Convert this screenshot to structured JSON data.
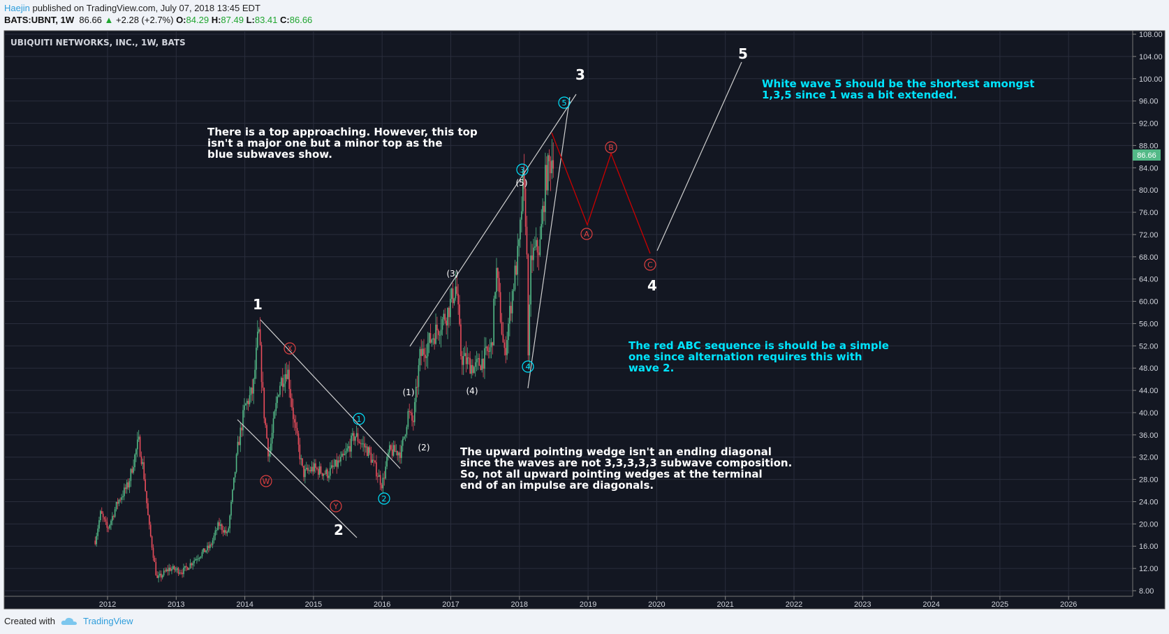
{
  "header": {
    "author": "Haejin",
    "published_text": " published on TradingView.com, July 07, 2018 13:45 EDT",
    "symbol": "BATS:UBNT, 1W",
    "last": "86.66",
    "change": "+2.28 (+2.7%)",
    "open_label": "O:",
    "open": "84.29",
    "high_label": "H:",
    "high": "87.49",
    "low_label": "L:",
    "low": "83.41",
    "close_label": "C:",
    "close": "86.66"
  },
  "chart_title": "UBIQUITI NETWORKS, INC., 1W, BATS",
  "price_badge": "86.66",
  "footer": {
    "created_with": "Created with",
    "brand": "TradingView"
  },
  "colors": {
    "bg": "#131722",
    "grid": "#2a2e3d",
    "up": "#53b987",
    "down": "#eb4d5c",
    "cyan": "#00e5ff",
    "red": "#cc0000",
    "badge": "#53b987"
  },
  "chart_data": {
    "type": "candlestick",
    "title": "UBIQUITI NETWORKS, INC., 1W, BATS",
    "ylim": [
      8,
      108
    ],
    "y_ticks": [
      "108.00",
      "104.00",
      "100.00",
      "96.00",
      "92.00",
      "88.00",
      "84.00",
      "80.00",
      "76.00",
      "72.00",
      "68.00",
      "64.00",
      "60.00",
      "56.00",
      "52.00",
      "48.00",
      "44.00",
      "40.00",
      "36.00",
      "32.00",
      "28.00",
      "24.00",
      "20.00",
      "16.00",
      "12.00",
      "8.00"
    ],
    "x_ticks": [
      "2012",
      "2013",
      "2014",
      "2015",
      "2016",
      "2017",
      "2018",
      "2019",
      "2020",
      "2021",
      "2022",
      "2023",
      "2024",
      "2025",
      "2026"
    ],
    "price_path": [
      [
        2011.82,
        17
      ],
      [
        2011.9,
        22
      ],
      [
        2012.0,
        19
      ],
      [
        2012.15,
        24
      ],
      [
        2012.3,
        27
      ],
      [
        2012.45,
        35
      ],
      [
        2012.52,
        30
      ],
      [
        2012.6,
        20
      ],
      [
        2012.72,
        10
      ],
      [
        2012.9,
        12
      ],
      [
        2013.1,
        11.5
      ],
      [
        2013.3,
        14
      ],
      [
        2013.5,
        16
      ],
      [
        2013.62,
        20
      ],
      [
        2013.75,
        18
      ],
      [
        2013.9,
        34
      ],
      [
        2014.0,
        41
      ],
      [
        2014.12,
        44
      ],
      [
        2014.2,
        55
      ],
      [
        2014.28,
        40
      ],
      [
        2014.35,
        32
      ],
      [
        2014.5,
        45
      ],
      [
        2014.62,
        48
      ],
      [
        2014.72,
        38
      ],
      [
        2014.85,
        29
      ],
      [
        2015.0,
        30
      ],
      [
        2015.2,
        29
      ],
      [
        2015.45,
        32
      ],
      [
        2015.6,
        36
      ],
      [
        2015.8,
        33
      ],
      [
        2016.0,
        27
      ],
      [
        2016.1,
        33
      ],
      [
        2016.28,
        33
      ],
      [
        2016.38,
        40
      ],
      [
        2016.45,
        38
      ],
      [
        2016.55,
        50
      ],
      [
        2016.75,
        54
      ],
      [
        2016.95,
        58
      ],
      [
        2017.08,
        63
      ],
      [
        2017.15,
        50
      ],
      [
        2017.35,
        48
      ],
      [
        2017.5,
        50
      ],
      [
        2017.6,
        52
      ],
      [
        2017.66,
        66
      ],
      [
        2017.78,
        50
      ],
      [
        2017.9,
        62
      ],
      [
        2018.0,
        70
      ],
      [
        2018.05,
        81
      ],
      [
        2018.1,
        74
      ],
      [
        2018.13,
        50
      ],
      [
        2018.17,
        68
      ],
      [
        2018.3,
        70
      ],
      [
        2018.38,
        82
      ],
      [
        2018.5,
        87
      ]
    ],
    "wave_labels": {
      "major": [
        "1",
        "2",
        "3",
        "4",
        "5"
      ],
      "minor_paren": [
        "(1)",
        "(2)",
        "(3)",
        "(4)",
        "(5)"
      ],
      "blue_sub": [
        "1",
        "2",
        "3",
        "4",
        "5"
      ],
      "red_corr": [
        "W",
        "X",
        "Y",
        "A",
        "B",
        "C"
      ]
    },
    "annotations": [
      [
        "There is a top approaching. However, this top",
        "isn't a major one but a minor top as the",
        "blue subwaves show."
      ],
      [
        "The upward pointing wedge isn't an ending diagonal",
        "since the waves are not 3,3,3,3,3 subwave composition.",
        "So, not all upward pointing wedges at the terminal",
        "end of an impulse are diagonals."
      ],
      [
        "The red ABC sequence is should be a simple",
        "one since alternation requires this with",
        "wave 2."
      ],
      [
        "White wave 5 should be the shortest amongst",
        "1,3,5 since 1 was a bit extended."
      ]
    ]
  }
}
